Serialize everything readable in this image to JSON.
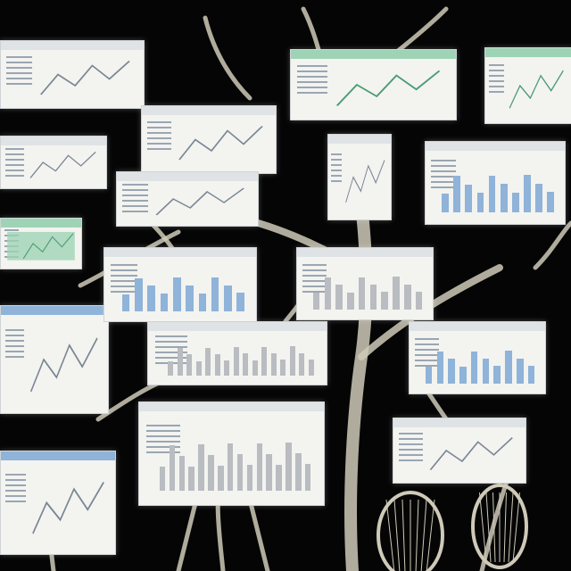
{
  "scene": {
    "background": "#050505",
    "branch_color": "#cfcab8",
    "card_color": "#f3f3f0",
    "accent_blue": "#8fb3d9",
    "accent_green": "#9fd3b5",
    "bar_gray": "#b9bcc0"
  },
  "cards": [
    {
      "kind": "line-panel"
    },
    {
      "kind": "text-panel"
    },
    {
      "kind": "green-map-panel"
    },
    {
      "kind": "blue-header-table"
    },
    {
      "kind": "blue-text-panel"
    },
    {
      "kind": "line-chart"
    },
    {
      "kind": "mixed-panel"
    },
    {
      "kind": "blue-bars"
    },
    {
      "kind": "gray-bars"
    },
    {
      "kind": "gray-bars-wide"
    },
    {
      "kind": "green-header-panel"
    },
    {
      "kind": "small-line-panel"
    },
    {
      "kind": "green-table-panel"
    },
    {
      "kind": "blue-bars-right"
    },
    {
      "kind": "gray-bars-center"
    },
    {
      "kind": "blue-bars-lower-right"
    },
    {
      "kind": "scatter-panel"
    }
  ]
}
